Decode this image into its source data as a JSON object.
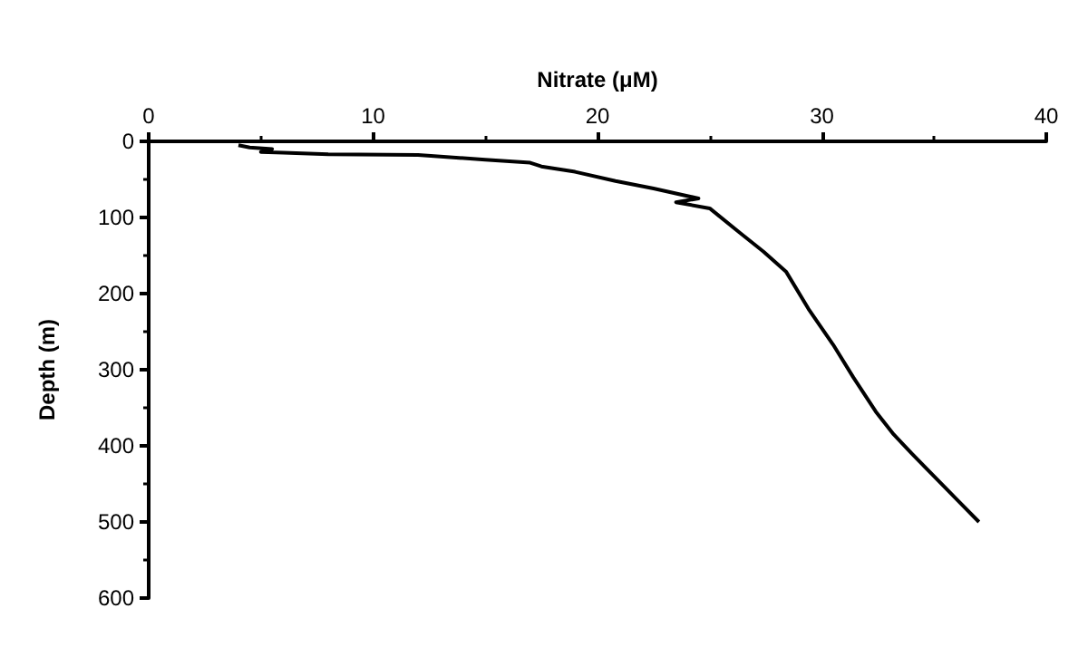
{
  "chart_data": {
    "type": "line",
    "xlabel": "Nitrate (μM)",
    "ylabel": "Depth (m)",
    "x": [
      4,
      4.5,
      5.5,
      5,
      6,
      8,
      12,
      13,
      15,
      17,
      17.5,
      19,
      20.8,
      22.5,
      24.5,
      23.5,
      25,
      26.3,
      27.4,
      28.4,
      29.4,
      30.5,
      31.4,
      32.4,
      33.2,
      34,
      35,
      36,
      37
    ],
    "series": [
      {
        "color": "#000000",
        "values": [
          5,
          8,
          10,
          14,
          15,
          17,
          18,
          20,
          24,
          28,
          33,
          40,
          52,
          62,
          75,
          80,
          88,
          119,
          145,
          171,
          220,
          267,
          310,
          355,
          385,
          410,
          440,
          470,
          500
        ]
      }
    ],
    "xlim": [
      0,
      40
    ],
    "xticks": [
      0,
      10,
      20,
      30,
      40
    ],
    "ylim": [
      600,
      0
    ],
    "yticks": [
      0,
      100,
      200,
      300,
      400,
      500,
      600
    ],
    "grid": false,
    "marker": "none",
    "line_style": "solid"
  }
}
